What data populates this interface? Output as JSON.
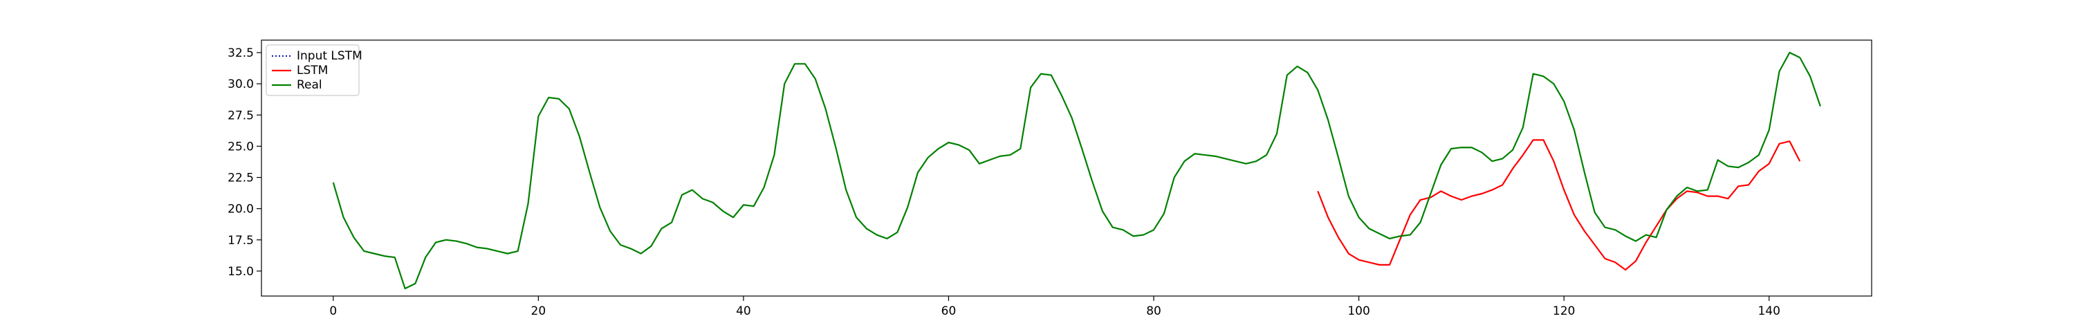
{
  "chart_data": {
    "type": "line",
    "xlim": [
      -7,
      150
    ],
    "ylim": [
      13,
      33.5
    ],
    "x_ticks": [
      0,
      20,
      40,
      60,
      80,
      100,
      120,
      140
    ],
    "y_ticks": [
      15.0,
      17.5,
      20.0,
      22.5,
      25.0,
      27.5,
      30.0,
      32.5
    ],
    "grid": false,
    "legend_position": "top-left",
    "series": [
      {
        "name": "Input LSTM",
        "color": "#1f1fb4",
        "style": "dotted",
        "x_start": 0,
        "values": []
      },
      {
        "name": "LSTM",
        "color": "#ff0000",
        "style": "solid",
        "x_start": 96,
        "values": [
          21.4,
          19.3,
          17.7,
          16.4,
          15.9,
          15.7,
          15.5,
          15.5,
          17.5,
          19.5,
          20.7,
          20.9,
          21.4,
          21.0,
          20.7,
          21.0,
          21.2,
          21.5,
          21.9,
          23.2,
          24.3,
          25.5,
          25.5,
          23.8,
          21.5,
          19.5,
          18.2,
          17.1,
          16.0,
          15.7,
          15.1,
          15.8,
          17.3,
          18.6,
          19.9,
          20.8,
          21.4,
          21.3,
          21.0,
          21.0,
          20.8,
          21.8,
          21.9,
          23.0,
          23.6,
          25.2,
          25.4,
          23.8
        ]
      },
      {
        "name": "Real",
        "color": "#008000",
        "style": "solid",
        "x_start": 0,
        "values": [
          22.1,
          19.3,
          17.7,
          16.6,
          16.4,
          16.2,
          16.1,
          13.6,
          14.0,
          16.1,
          17.3,
          17.5,
          17.4,
          17.2,
          16.9,
          16.8,
          16.6,
          16.4,
          16.6,
          20.4,
          27.4,
          28.9,
          28.8,
          28.0,
          25.8,
          22.9,
          20.1,
          18.2,
          17.1,
          16.8,
          16.4,
          17.0,
          18.4,
          18.9,
          21.1,
          21.5,
          20.8,
          20.5,
          19.8,
          19.3,
          20.3,
          20.2,
          21.7,
          24.3,
          30.0,
          31.6,
          31.6,
          30.4,
          28.0,
          24.9,
          21.5,
          19.3,
          18.4,
          17.9,
          17.6,
          18.1,
          20.1,
          22.9,
          24.1,
          24.8,
          25.3,
          25.1,
          24.7,
          23.6,
          23.9,
          24.2,
          24.3,
          24.8,
          29.7,
          30.8,
          30.7,
          29.1,
          27.3,
          24.8,
          22.2,
          19.8,
          18.5,
          18.3,
          17.8,
          17.9,
          18.3,
          19.6,
          22.5,
          23.8,
          24.4,
          24.3,
          24.2,
          24.0,
          23.8,
          23.6,
          23.8,
          24.3,
          26.0,
          30.7,
          31.4,
          30.9,
          29.5,
          27.1,
          24.1,
          21.0,
          19.3,
          18.4,
          18.0,
          17.6,
          17.8,
          17.9,
          18.9,
          21.2,
          23.5,
          24.8,
          24.9,
          24.9,
          24.5,
          23.8,
          24.0,
          24.7,
          26.5,
          30.8,
          30.6,
          30.0,
          28.6,
          26.3,
          22.9,
          19.7,
          18.5,
          18.3,
          17.8,
          17.4,
          17.9,
          17.7,
          19.9,
          21.0,
          21.7,
          21.4,
          21.5,
          23.9,
          23.4,
          23.3,
          23.7,
          24.3,
          26.3,
          31.0,
          32.5,
          32.1,
          30.6,
          28.2
        ]
      }
    ]
  }
}
